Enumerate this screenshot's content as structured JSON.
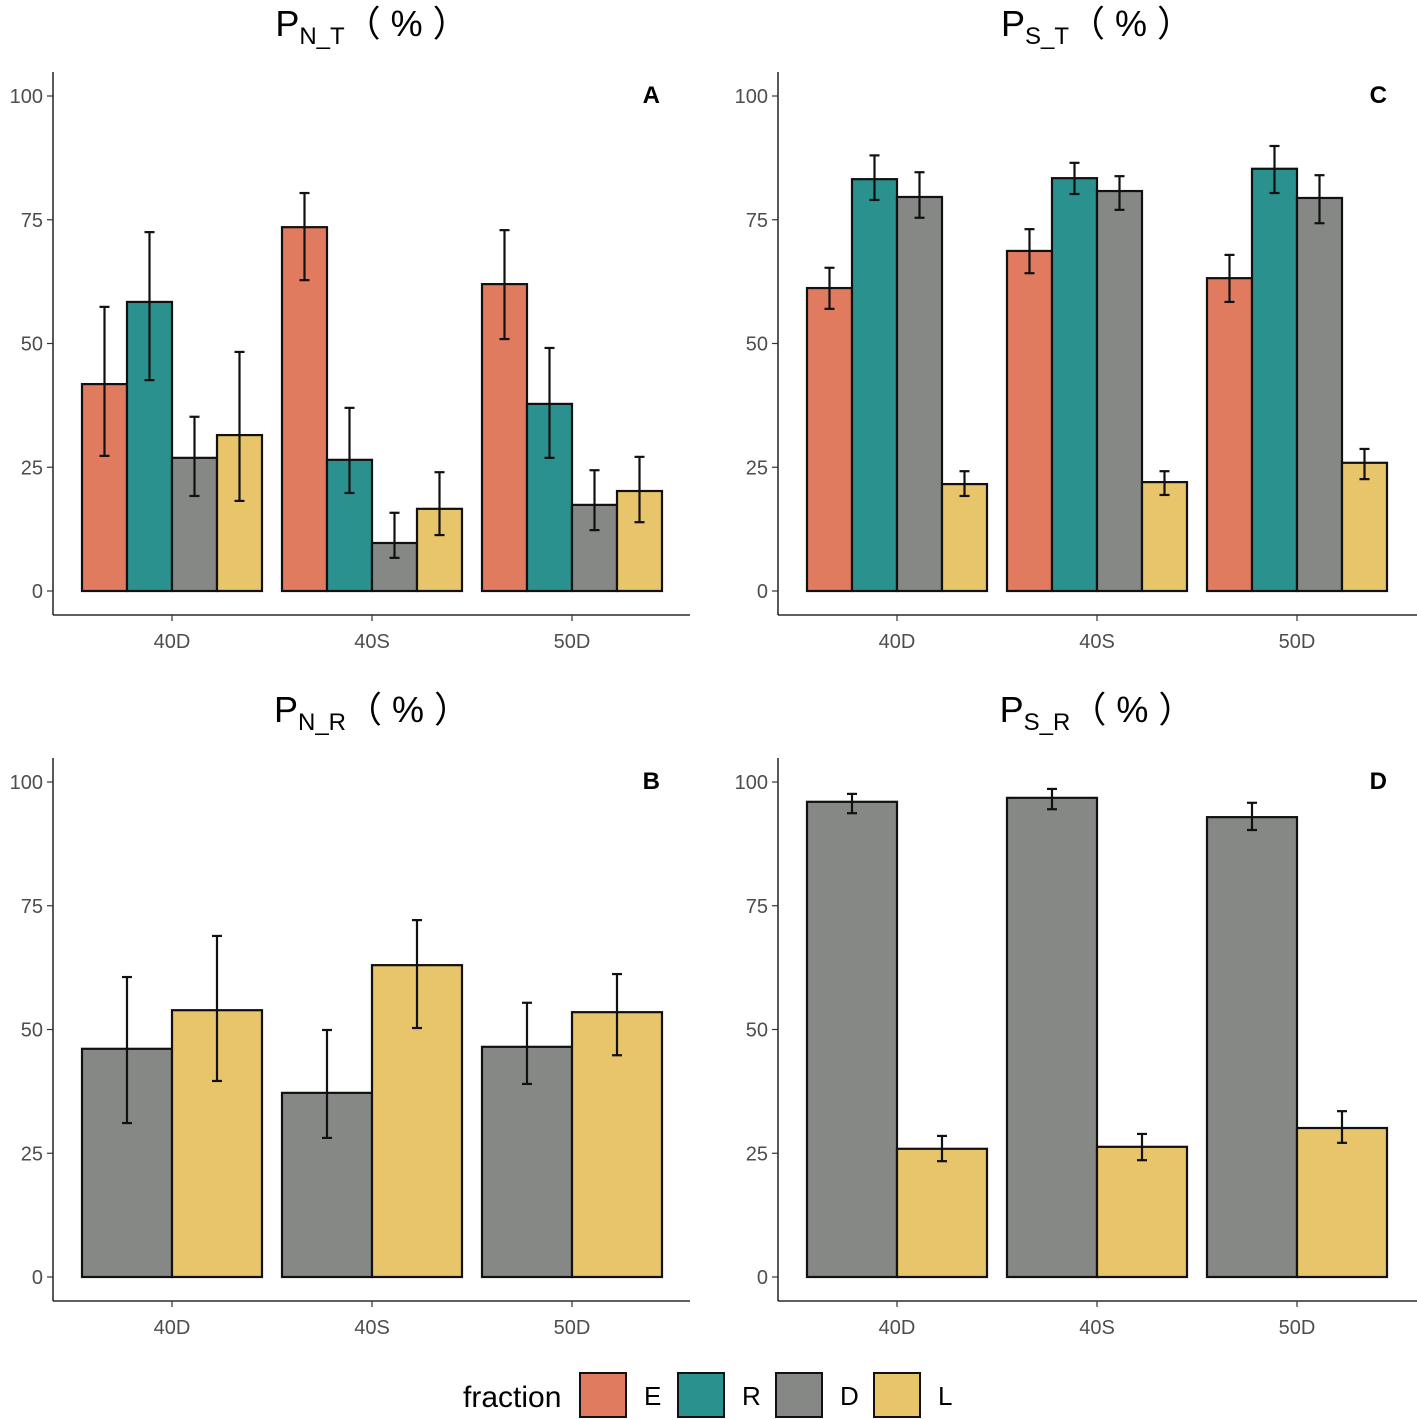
{
  "chart_data": [
    {
      "type": "bar",
      "panel_label": "A",
      "title": {
        "main": "P",
        "sub": "N_T",
        "suffix": "（ % ）"
      },
      "categories": [
        "40D",
        "40S",
        "50D"
      ],
      "ylim": [
        0,
        100
      ],
      "yticks": [
        "0",
        "25",
        "50",
        "75",
        "100"
      ],
      "series": [
        {
          "name": "E",
          "values": [
            41.8,
            73.5,
            62.0
          ],
          "err_low": [
            27.3,
            62.8,
            50.9
          ],
          "err_high": [
            57.4,
            80.4,
            72.9
          ]
        },
        {
          "name": "R",
          "values": [
            58.4,
            26.5,
            37.8
          ],
          "err_low": [
            42.6,
            19.8,
            26.9
          ],
          "err_high": [
            72.5,
            37.0,
            49.1
          ]
        },
        {
          "name": "D",
          "values": [
            26.9,
            9.7,
            17.4
          ],
          "err_low": [
            19.2,
            6.7,
            12.3
          ],
          "err_high": [
            35.2,
            15.8,
            24.4
          ]
        },
        {
          "name": "L",
          "values": [
            31.5,
            16.6,
            20.2
          ],
          "err_low": [
            18.2,
            11.3,
            13.9
          ],
          "err_high": [
            48.3,
            24.0,
            27.1
          ]
        }
      ]
    },
    {
      "type": "bar",
      "panel_label": "C",
      "title": {
        "main": "P",
        "sub": "S_T",
        "suffix": "（ % ）"
      },
      "categories": [
        "40D",
        "40S",
        "50D"
      ],
      "ylim": [
        0,
        100
      ],
      "yticks": [
        "0",
        "25",
        "50",
        "75",
        "100"
      ],
      "series": [
        {
          "name": "E",
          "values": [
            61.2,
            68.7,
            63.2
          ],
          "err_low": [
            57.0,
            64.2,
            58.4
          ],
          "err_high": [
            65.3,
            73.1,
            67.9
          ]
        },
        {
          "name": "R",
          "values": [
            83.2,
            83.4,
            85.3
          ],
          "err_low": [
            79.0,
            80.2,
            80.4
          ],
          "err_high": [
            88.0,
            86.5,
            89.9
          ]
        },
        {
          "name": "D",
          "values": [
            79.6,
            80.8,
            79.4
          ],
          "err_low": [
            75.4,
            77.0,
            74.3
          ],
          "err_high": [
            84.6,
            83.8,
            84.0
          ]
        },
        {
          "name": "L",
          "values": [
            21.6,
            22.0,
            25.9
          ],
          "err_low": [
            19.2,
            19.4,
            22.6
          ],
          "err_high": [
            24.2,
            24.2,
            28.7
          ]
        }
      ]
    },
    {
      "type": "bar",
      "panel_label": "B",
      "title": {
        "main": "P",
        "sub": "N_R",
        "suffix": "（ % ）"
      },
      "categories": [
        "40D",
        "40S",
        "50D"
      ],
      "ylim": [
        0,
        100
      ],
      "yticks": [
        "0",
        "25",
        "50",
        "75",
        "100"
      ],
      "series": [
        {
          "name": "D",
          "values": [
            46.1,
            37.2,
            46.5
          ],
          "err_low": [
            31.1,
            28.1,
            39.0
          ],
          "err_high": [
            60.6,
            49.9,
            55.4
          ]
        },
        {
          "name": "L",
          "values": [
            53.9,
            63.0,
            53.5
          ],
          "err_low": [
            39.6,
            50.3,
            44.8
          ],
          "err_high": [
            68.9,
            72.1,
            61.2
          ]
        }
      ]
    },
    {
      "type": "bar",
      "panel_label": "D",
      "title": {
        "main": "P",
        "sub": "S_R",
        "suffix": "（ % ）"
      },
      "categories": [
        "40D",
        "40S",
        "50D"
      ],
      "ylim": [
        0,
        100
      ],
      "yticks": [
        "0",
        "25",
        "50",
        "75",
        "100"
      ],
      "series": [
        {
          "name": "D",
          "values": [
            96.0,
            96.8,
            92.9
          ],
          "err_low": [
            93.7,
            94.5,
            90.3
          ],
          "err_high": [
            97.6,
            98.6,
            95.8
          ]
        },
        {
          "name": "L",
          "values": [
            25.9,
            26.3,
            30.1
          ],
          "err_low": [
            23.4,
            23.6,
            27.1
          ],
          "err_high": [
            28.5,
            28.9,
            33.5
          ]
        }
      ]
    }
  ],
  "legend": {
    "title": "fraction",
    "placement": "bottom",
    "items": [
      {
        "name": "E",
        "color": "#E07B5F"
      },
      {
        "name": "R",
        "color": "#2A918E"
      },
      {
        "name": "D",
        "color": "#868886"
      },
      {
        "name": "L",
        "color": "#E8C46A"
      }
    ]
  }
}
